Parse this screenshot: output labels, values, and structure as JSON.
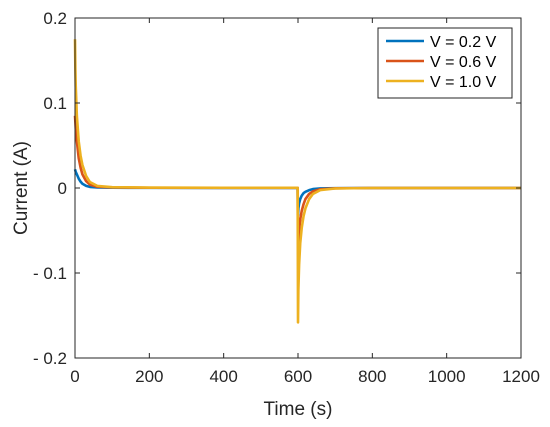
{
  "chart_data": {
    "type": "line",
    "xlabel": "Time (s)",
    "ylabel": "Current (A)",
    "xlim": [
      0,
      1200
    ],
    "ylim": [
      -0.2,
      0.2
    ],
    "x_ticks": [
      0,
      200,
      400,
      600,
      800,
      1000,
      1200
    ],
    "x_tick_labels": [
      "0",
      "200",
      "400",
      "600",
      "800",
      "1000",
      "1200"
    ],
    "y_ticks": [
      0.2,
      0.1,
      0,
      -0.1,
      -0.2
    ],
    "y_tick_labels": [
      "0.2",
      "0.1",
      "0",
      "- 0.1",
      "- 0.2"
    ],
    "grid": false,
    "legend_position": "top-right",
    "series": [
      {
        "name": "V = 0.2 V",
        "color": "#0072BD",
        "x": [
          0,
          2,
          5,
          10,
          15,
          20,
          30,
          40,
          60,
          100,
          200,
          400,
          599,
          600,
          601,
          603,
          606,
          610,
          615,
          620,
          630,
          640,
          660,
          700,
          800,
          1000,
          1200
        ],
        "y": [
          0.022,
          0.019,
          0.016,
          0.011,
          0.0075,
          0.005,
          0.0025,
          0.0013,
          0.0006,
          0.0003,
          0.0002,
          0.0001,
          0.0001,
          -0.032,
          -0.024,
          -0.018,
          -0.013,
          -0.009,
          -0.006,
          -0.0045,
          -0.0025,
          -0.0013,
          -0.0005,
          -0.0002,
          0,
          0,
          0
        ]
      },
      {
        "name": "V = 0.6 V",
        "color": "#D95319",
        "x": [
          0,
          2,
          5,
          10,
          15,
          20,
          30,
          40,
          60,
          100,
          200,
          400,
          599,
          600,
          601,
          603,
          606,
          610,
          615,
          620,
          630,
          640,
          660,
          700,
          800,
          1000,
          1200
        ],
        "y": [
          0.085,
          0.07,
          0.055,
          0.035,
          0.024,
          0.016,
          0.008,
          0.004,
          0.0015,
          0.0006,
          0.0003,
          0.0002,
          0.0002,
          -0.075,
          -0.062,
          -0.05,
          -0.037,
          -0.027,
          -0.019,
          -0.013,
          -0.007,
          -0.004,
          -0.0015,
          -0.0004,
          0,
          0,
          0
        ]
      },
      {
        "name": "V = 1.0 V",
        "color": "#EDB120",
        "x": [
          0,
          1,
          2,
          5,
          10,
          15,
          20,
          30,
          40,
          60,
          100,
          200,
          400,
          599,
          600,
          601,
          603,
          606,
          610,
          615,
          620,
          630,
          640,
          660,
          700,
          800,
          1000,
          1200
        ],
        "y": [
          0.175,
          0.14,
          0.12,
          0.085,
          0.055,
          0.038,
          0.027,
          0.014,
          0.007,
          0.0025,
          0.001,
          0.0005,
          0.0003,
          0.0003,
          -0.158,
          -0.12,
          -0.09,
          -0.065,
          -0.047,
          -0.033,
          -0.024,
          -0.013,
          -0.007,
          -0.0025,
          -0.0006,
          0,
          0,
          0
        ]
      }
    ]
  }
}
